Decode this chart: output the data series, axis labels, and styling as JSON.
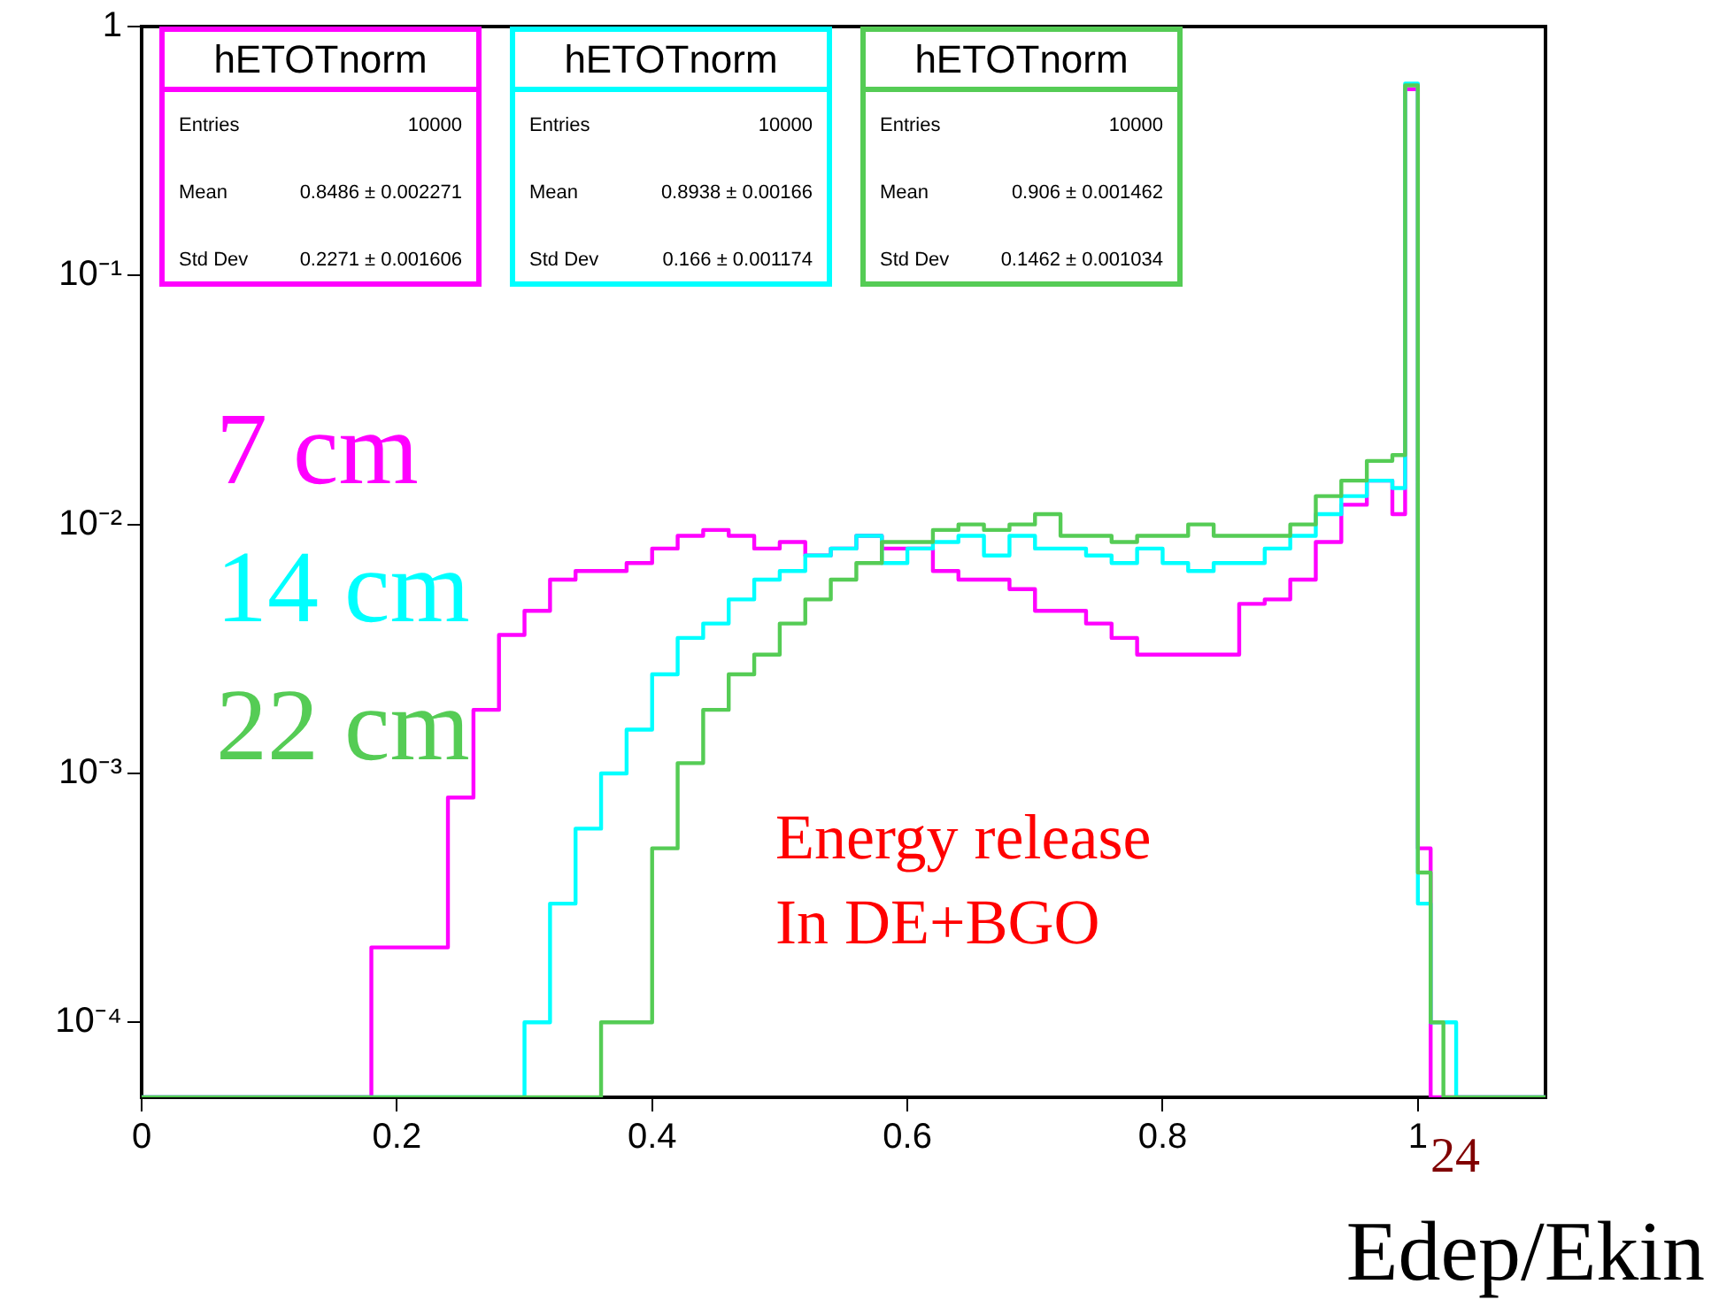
{
  "chart_data": {
    "type": "histogram",
    "xlabel": "Edep/Ekin",
    "bins": [
      0,
      0.02,
      0.04,
      0.06,
      0.08,
      0.1,
      0.12,
      0.14,
      0.16,
      0.18,
      0.2,
      0.22,
      0.24,
      0.26,
      0.28,
      0.3,
      0.32,
      0.34,
      0.36,
      0.38,
      0.4,
      0.42,
      0.44,
      0.46,
      0.48,
      0.5,
      0.52,
      0.54,
      0.56,
      0.58,
      0.6,
      0.62,
      0.64,
      0.66,
      0.68,
      0.7,
      0.72,
      0.74,
      0.76,
      0.78,
      0.8,
      0.82,
      0.84,
      0.86,
      0.88,
      0.9,
      0.92,
      0.94,
      0.96,
      0.98,
      0.99,
      1,
      1.01,
      1.02,
      1.03,
      1.1
    ],
    "series": [
      {
        "name": "7 cm",
        "color": "#ff00ff",
        "values": [
          null,
          null,
          null,
          null,
          null,
          null,
          null,
          null,
          null,
          0.0002,
          0.0002,
          0.0002,
          0.0008,
          0.0018,
          0.0036,
          0.0045,
          0.006,
          0.0065,
          0.0065,
          0.007,
          0.008,
          0.009,
          0.0095,
          0.009,
          0.008,
          0.0085,
          0.0075,
          0.008,
          0.009,
          0.008,
          0.008,
          0.0065,
          0.006,
          0.006,
          0.0055,
          0.0045,
          0.0045,
          0.004,
          0.0035,
          0.003,
          0.003,
          0.003,
          0.003,
          0.0048,
          0.005,
          0.006,
          0.0085,
          0.012,
          0.015,
          0.011,
          0.56,
          0.0005,
          null,
          null,
          null
        ]
      },
      {
        "name": "14 cm",
        "color": "#00ffff",
        "values": [
          null,
          null,
          null,
          null,
          null,
          null,
          null,
          null,
          null,
          null,
          null,
          null,
          null,
          null,
          null,
          0.0001,
          0.0003,
          0.0006,
          0.001,
          0.0015,
          0.0025,
          0.0035,
          0.004,
          0.005,
          0.006,
          0.0065,
          0.0075,
          0.008,
          0.009,
          0.007,
          0.008,
          0.0085,
          0.009,
          0.0075,
          0.009,
          0.008,
          0.008,
          0.0075,
          0.007,
          0.008,
          0.007,
          0.0065,
          0.007,
          0.007,
          0.008,
          0.009,
          0.011,
          0.013,
          0.015,
          0.014,
          0.59,
          0.0003,
          0.0001,
          0.0001,
          null
        ]
      },
      {
        "name": "22 cm",
        "color": "#55cc55",
        "values": [
          null,
          null,
          null,
          null,
          null,
          null,
          null,
          null,
          null,
          null,
          null,
          null,
          null,
          null,
          null,
          null,
          null,
          null,
          0.0001,
          0.0001,
          0.0005,
          0.0011,
          0.0018,
          0.0025,
          0.003,
          0.004,
          0.005,
          0.006,
          0.007,
          0.0085,
          0.0085,
          0.0095,
          0.01,
          0.0095,
          0.01,
          0.011,
          0.009,
          0.009,
          0.0085,
          0.009,
          0.009,
          0.01,
          0.009,
          0.009,
          0.009,
          0.01,
          0.013,
          0.015,
          0.018,
          0.019,
          0.58,
          0.0004,
          0.0001,
          null,
          null
        ]
      }
    ],
    "xlim": [
      0,
      1.1
    ],
    "xticks": [
      0,
      0.2,
      0.4,
      0.6,
      0.8,
      1
    ],
    "ylim": [
      5e-05,
      1
    ],
    "yticks": [
      {
        "value": 0.0001,
        "label": "10⁻⁴"
      },
      {
        "value": 0.001,
        "label": "10⁻³"
      },
      {
        "value": 0.01,
        "label": "10⁻²"
      },
      {
        "value": 0.1,
        "label": "10⁻¹"
      },
      1
    ],
    "log": "y",
    "grid": false,
    "legend": "left",
    "annotations": [
      "hETOTnorm",
      "Entries",
      "10000",
      "Mean",
      "0.8486 ± 0.002271",
      "Std Dev",
      "0.2271 ± 0.001606",
      "hETOTnorm",
      "Entries",
      "10000",
      "Mean",
      "0.8938 ± 0.00166",
      "Std Dev",
      "0.166 ± 0.001174",
      "hETOTnorm",
      "Entries",
      "10000",
      "Mean",
      "0.906 ± 0.001462",
      "Std Dev",
      "0.1462 ± 0.001034",
      "Energy release",
      "In DE+BGO",
      "24"
    ]
  }
}
